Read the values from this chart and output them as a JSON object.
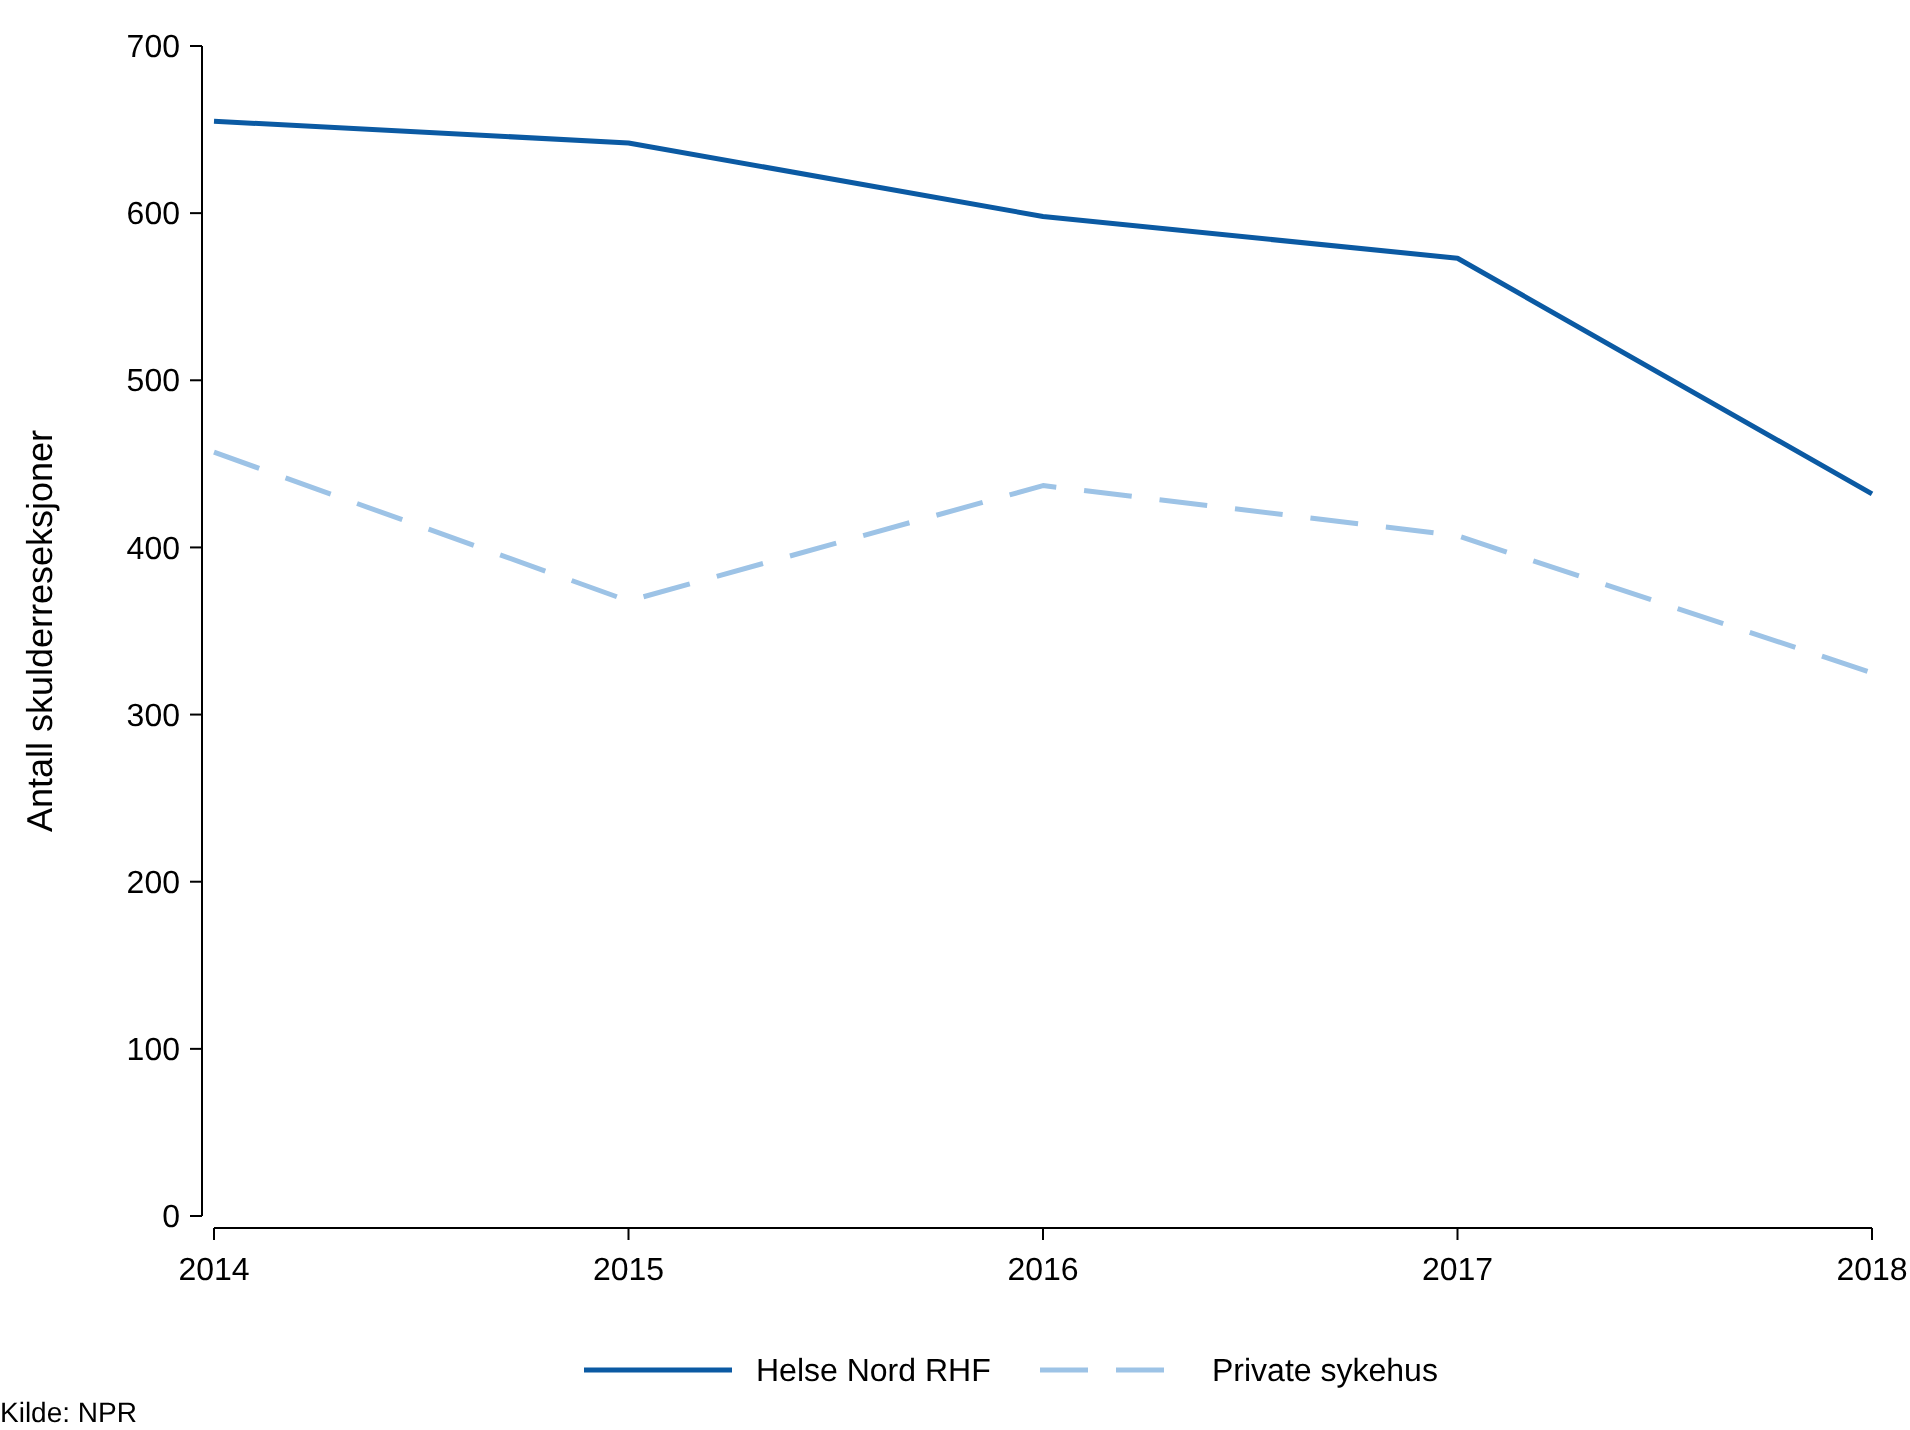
{
  "chart_data": {
    "type": "line",
    "ylabel": "Antall skulderreseksjoner",
    "x": [
      2014,
      2015,
      2016,
      2017,
      2018
    ],
    "xlim": [
      2014,
      2018
    ],
    "xticks": [
      2014,
      2015,
      2016,
      2017,
      2018
    ],
    "ylim": [
      0,
      700
    ],
    "yticks": [
      0,
      100,
      200,
      300,
      400,
      500,
      600,
      700
    ],
    "series": [
      {
        "name": "Helse Nord RHF",
        "color": "#0b5aa3",
        "values": [
          655,
          642,
          598,
          573,
          432
        ],
        "line_style": "solid"
      },
      {
        "name": "Private sykehus",
        "color": "#9dc3e6",
        "values": [
          457,
          368,
          437,
          407,
          325
        ],
        "line_style": "dashed"
      }
    ],
    "legend": "bottom",
    "grid": false,
    "annotations": [
      "Kilde: NPR"
    ]
  }
}
